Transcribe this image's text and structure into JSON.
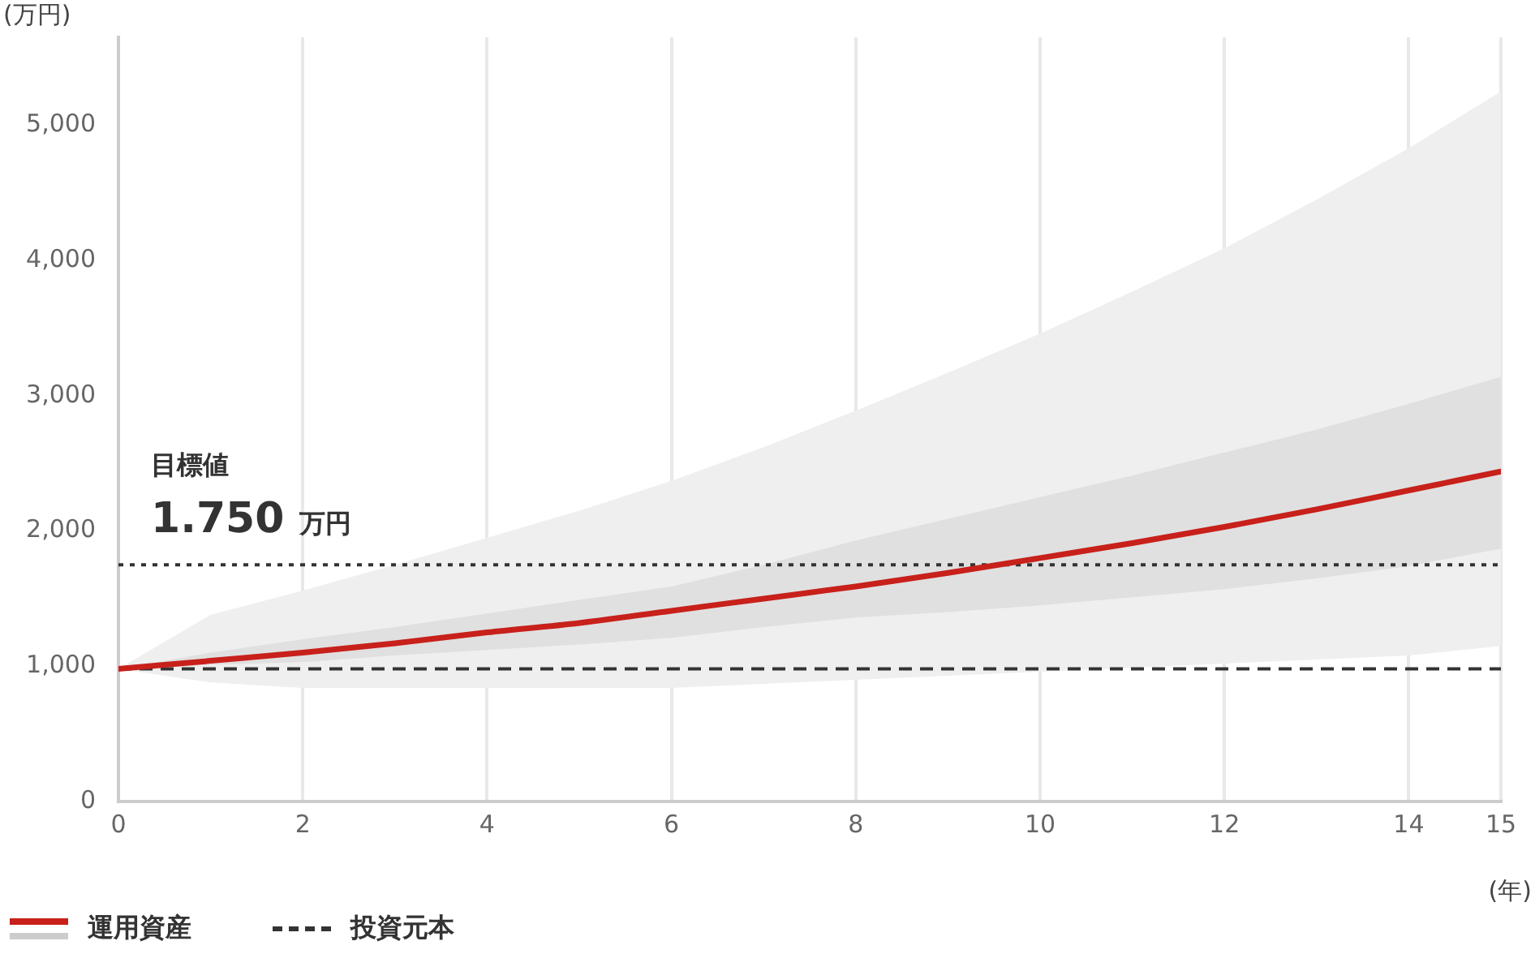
{
  "chart_data": {
    "type": "line",
    "ylabel": "(万円)",
    "xlabel": "(年)",
    "x": [
      0,
      1,
      2,
      3,
      4,
      5,
      6,
      7,
      8,
      9,
      10,
      11,
      12,
      13,
      14,
      15
    ],
    "series": [
      {
        "name": "運用資産",
        "color": "#c8201a",
        "values": [
          980,
          1040,
          1100,
          1170,
          1250,
          1320,
          1410,
          1500,
          1590,
          1690,
          1800,
          1910,
          2030,
          2160,
          2300,
          2440
        ]
      },
      {
        "color": "#e0e0e0",
        "values": [
          null,
          null,
          null,
          null,
          null,
          null,
          null,
          null,
          null,
          null,
          null,
          null,
          null,
          null,
          null,
          null
        ],
        "lower": [
          980,
          1010,
          1030,
          1080,
          1120,
          1160,
          1210,
          1290,
          1360,
          1400,
          1450,
          1510,
          1570,
          1650,
          1740,
          1870
        ],
        "upper": [
          980,
          1100,
          1200,
          1290,
          1390,
          1490,
          1590,
          1750,
          1930,
          2090,
          2250,
          2410,
          2580,
          2750,
          2940,
          3140
        ]
      },
      {
        "color": "#efefef",
        "values": [
          null,
          null,
          null,
          null,
          null,
          null,
          null,
          null,
          null,
          null,
          null,
          null,
          null,
          null,
          null,
          null
        ],
        "lower": [
          980,
          880,
          840,
          840,
          840,
          840,
          840,
          870,
          900,
          930,
          960,
          990,
          1020,
          1050,
          1080,
          1150
        ],
        "upper": [
          980,
          1380,
          1560,
          1750,
          1950,
          2150,
          2370,
          2620,
          2890,
          3170,
          3460,
          3770,
          4090,
          4450,
          4830,
          5250
        ]
      }
    ],
    "xlim": [
      0,
      15
    ],
    "xticks": [
      0,
      2,
      4,
      6,
      8,
      10,
      12,
      14,
      15
    ],
    "ylim": [
      0,
      5650
    ],
    "yticks": [
      0,
      {
        "value": 1000,
        "label": "1,000"
      },
      {
        "value": 2000,
        "label": "2,000"
      },
      {
        "value": 3000,
        "label": "3,000"
      },
      {
        "value": 4000,
        "label": "4,000"
      },
      {
        "value": 5000,
        "label": "5,000"
      }
    ],
    "ref_lines": [
      {
        "axis": "y",
        "value": 1750,
        "line_style": "dotted",
        "color": "#333333"
      },
      {
        "axis": "y",
        "value": 980,
        "label": "投資元本",
        "line_style": "dashed",
        "color": "#333333"
      }
    ],
    "annotations": [
      "目標値",
      "1.750 万円"
    ],
    "grid": "x",
    "legend": "bottom left",
    "marker": "none",
    "line_style": "solid"
  }
}
